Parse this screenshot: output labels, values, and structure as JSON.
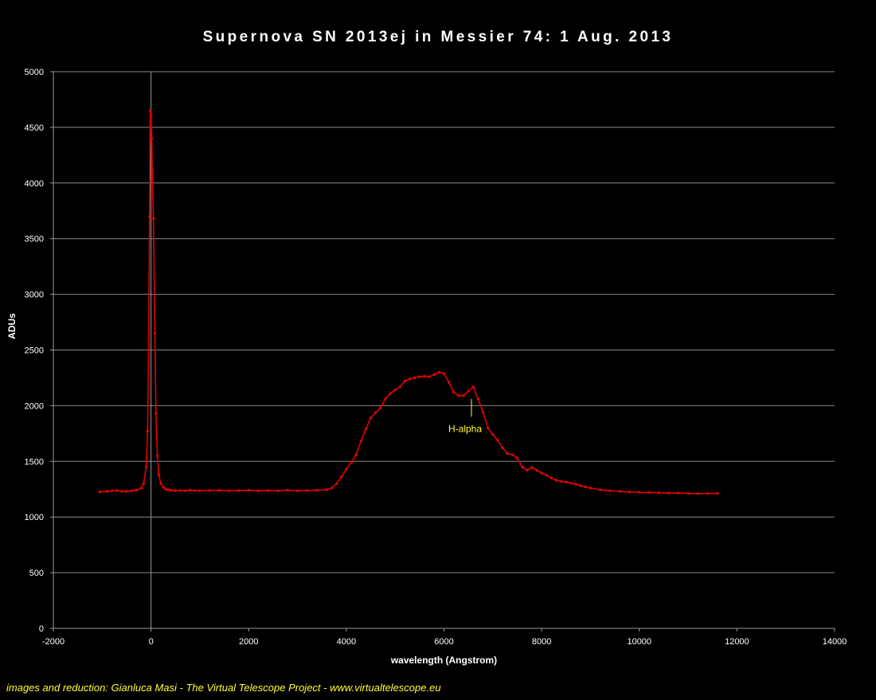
{
  "chart_data": {
    "type": "line",
    "title": "Supernova SN 2013ej in Messier 74: 1 Aug. 2013",
    "xlabel": "wavelength (Angstrom)",
    "ylabel": "ADUs",
    "xlim": [
      -2000,
      14000
    ],
    "ylim": [
      0,
      5000
    ],
    "xticks": [
      -2000,
      0,
      2000,
      4000,
      6000,
      8000,
      10000,
      12000,
      14000
    ],
    "yticks": [
      0,
      500,
      1000,
      1500,
      2000,
      2500,
      3000,
      3500,
      4000,
      4500,
      5000
    ],
    "grid": "horizontal",
    "legend": "none",
    "series_color": "#e00000",
    "annotation": {
      "text": "H-alpha",
      "x": 6563,
      "color": "#ffff33"
    },
    "series": [
      {
        "x": [
          -1050,
          -900,
          -800,
          -700,
          -600,
          -500,
          -400,
          -300,
          -200,
          -150,
          -100,
          -70,
          -50,
          -30,
          -15,
          0,
          15,
          30,
          50,
          80,
          100,
          130,
          160,
          200,
          250,
          300,
          350,
          400,
          500,
          600,
          700,
          800,
          900,
          1000,
          1200,
          1400,
          1600,
          1800,
          2000,
          2200,
          2400,
          2600,
          2800,
          3000,
          3200,
          3400,
          3600,
          3700,
          3800,
          3900,
          4000,
          4100,
          4200,
          4300,
          4400,
          4500,
          4600,
          4700,
          4800,
          4900,
          5000,
          5100,
          5200,
          5300,
          5400,
          5500,
          5600,
          5700,
          5800,
          5900,
          6000,
          6100,
          6200,
          6300,
          6400,
          6500,
          6600,
          6700,
          6800,
          6900,
          7000,
          7100,
          7200,
          7300,
          7400,
          7500,
          7600,
          7700,
          7800,
          7900,
          8000,
          8100,
          8200,
          8300,
          8400,
          8500,
          8600,
          8700,
          8800,
          8900,
          9000,
          9200,
          9400,
          9600,
          9800,
          10000,
          10200,
          10400,
          10600,
          10800,
          11000,
          11200,
          11400,
          11600
        ],
        "y": [
          1225,
          1230,
          1235,
          1238,
          1232,
          1230,
          1235,
          1240,
          1260,
          1300,
          1450,
          1770,
          2500,
          3700,
          4650,
          4600,
          4400,
          4000,
          3680,
          2650,
          1930,
          1550,
          1380,
          1300,
          1270,
          1250,
          1245,
          1240,
          1235,
          1238,
          1235,
          1240,
          1238,
          1235,
          1238,
          1240,
          1235,
          1238,
          1240,
          1235,
          1238,
          1235,
          1240,
          1235,
          1238,
          1240,
          1245,
          1260,
          1300,
          1360,
          1430,
          1490,
          1560,
          1680,
          1790,
          1890,
          1940,
          1980,
          2060,
          2110,
          2140,
          2170,
          2220,
          2240,
          2250,
          2260,
          2265,
          2260,
          2280,
          2300,
          2290,
          2210,
          2120,
          2090,
          2090,
          2130,
          2170,
          2060,
          1940,
          1800,
          1740,
          1690,
          1620,
          1570,
          1560,
          1530,
          1450,
          1420,
          1445,
          1420,
          1395,
          1375,
          1350,
          1330,
          1320,
          1315,
          1305,
          1295,
          1280,
          1270,
          1260,
          1245,
          1235,
          1230,
          1225,
          1222,
          1220,
          1218,
          1215,
          1215,
          1212,
          1210,
          1210,
          1212
        ]
      }
    ]
  },
  "credit": "images and reduction: Gianluca Masi - The Virtual Telescope Project - www.virtualtelescope.eu"
}
